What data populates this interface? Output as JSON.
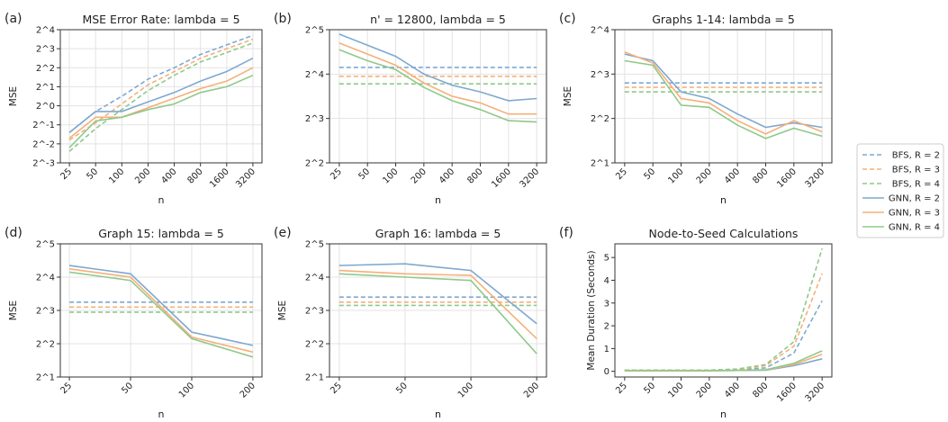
{
  "legend": {
    "placement": "right",
    "entries": [
      {
        "label": "BFS, R = 2",
        "color": "#7FA8D0",
        "dash": true
      },
      {
        "label": "BFS, R = 3",
        "color": "#F5B078",
        "dash": true
      },
      {
        "label": "BFS, R = 4",
        "color": "#8FC98A",
        "dash": true
      },
      {
        "label": "GNN, R = 2",
        "color": "#7FA8D0",
        "dash": false
      },
      {
        "label": "GNN, R = 3",
        "color": "#F5B078",
        "dash": false
      },
      {
        "label": "GNN, R = 4",
        "color": "#8FC98A",
        "dash": false
      }
    ]
  },
  "chart_data": [
    {
      "panel": "(a)",
      "type": "line",
      "title": "MSE Error Rate: lambda = 5",
      "xlabel": "n",
      "ylabel": "MSE",
      "categories": [
        "25",
        "50",
        "100",
        "200",
        "400",
        "800",
        "1600",
        "3200"
      ],
      "yscale": "log2",
      "ylim": [
        -3,
        4
      ],
      "yticks": [
        "2^-3",
        "2^-2",
        "2^-1",
        "2^0",
        "2^1",
        "2^2",
        "2^3",
        "2^4"
      ],
      "grid": true,
      "series": [
        {
          "name": "BFS, R = 2",
          "exponents": [
            -1.4,
            -0.3,
            0.5,
            1.4,
            2.0,
            2.7,
            3.2,
            3.7
          ]
        },
        {
          "name": "BFS, R = 3",
          "exponents": [
            -1.8,
            -0.9,
            0.1,
            1.1,
            1.8,
            2.5,
            3.0,
            3.5
          ]
        },
        {
          "name": "BFS, R = 4",
          "exponents": [
            -2.4,
            -1.2,
            -0.2,
            0.8,
            1.6,
            2.3,
            2.8,
            3.3
          ]
        },
        {
          "name": "GNN, R = 2",
          "exponents": [
            -1.4,
            -0.3,
            -0.3,
            0.2,
            0.7,
            1.3,
            1.8,
            2.5
          ]
        },
        {
          "name": "GNN, R = 3",
          "exponents": [
            -1.7,
            -0.6,
            -0.6,
            -0.1,
            0.4,
            0.9,
            1.3,
            2.0
          ]
        },
        {
          "name": "GNN, R = 4",
          "exponents": [
            -2.2,
            -0.8,
            -0.6,
            -0.2,
            0.1,
            0.7,
            1.0,
            1.6
          ]
        }
      ]
    },
    {
      "panel": "(b)",
      "type": "line",
      "title": "n' = 12800, lambda = 5",
      "xlabel": "n",
      "ylabel": "",
      "categories": [
        "25",
        "50",
        "100",
        "200",
        "400",
        "800",
        "1600",
        "3200"
      ],
      "yscale": "log2",
      "ylim": [
        2,
        5
      ],
      "yticks": [
        "2^2",
        "2^3",
        "2^4",
        "2^5"
      ],
      "grid": true,
      "series": [
        {
          "name": "BFS, R = 2",
          "exponents": [
            4.15,
            4.15,
            4.15,
            4.15,
            4.15,
            4.15,
            4.15,
            4.15
          ]
        },
        {
          "name": "BFS, R = 3",
          "exponents": [
            3.95,
            3.95,
            3.95,
            3.95,
            3.95,
            3.95,
            3.95,
            3.95
          ]
        },
        {
          "name": "BFS, R = 4",
          "exponents": [
            3.78,
            3.78,
            3.78,
            3.78,
            3.78,
            3.78,
            3.78,
            3.78
          ]
        },
        {
          "name": "GNN, R = 2",
          "exponents": [
            4.9,
            4.65,
            4.4,
            4.0,
            3.75,
            3.6,
            3.4,
            3.45
          ]
        },
        {
          "name": "GNN, R = 3",
          "exponents": [
            4.7,
            4.45,
            4.2,
            3.8,
            3.5,
            3.35,
            3.1,
            3.1
          ]
        },
        {
          "name": "GNN, R = 4",
          "exponents": [
            4.55,
            4.3,
            4.1,
            3.7,
            3.4,
            3.2,
            2.95,
            2.92
          ]
        }
      ]
    },
    {
      "panel": "(c)",
      "type": "line",
      "title": "Graphs 1-14: lambda = 5",
      "xlabel": "n",
      "ylabel": "MSE",
      "categories": [
        "25",
        "50",
        "100",
        "200",
        "400",
        "800",
        "1600",
        "3200"
      ],
      "yscale": "log2",
      "ylim": [
        1,
        4
      ],
      "yticks": [
        "2^1",
        "2^2",
        "2^3",
        "2^4"
      ],
      "grid": true,
      "series": [
        {
          "name": "BFS, R = 2",
          "exponents": [
            2.8,
            2.8,
            2.8,
            2.8,
            2.8,
            2.8,
            2.8,
            2.8
          ]
        },
        {
          "name": "BFS, R = 3",
          "exponents": [
            2.7,
            2.7,
            2.7,
            2.7,
            2.7,
            2.7,
            2.7,
            2.7
          ]
        },
        {
          "name": "BFS, R = 4",
          "exponents": [
            2.6,
            2.6,
            2.6,
            2.6,
            2.6,
            2.6,
            2.6,
            2.6
          ]
        },
        {
          "name": "GNN, R = 2",
          "exponents": [
            3.45,
            3.3,
            2.6,
            2.45,
            2.1,
            1.8,
            1.9,
            1.8
          ]
        },
        {
          "name": "GNN, R = 3",
          "exponents": [
            3.5,
            3.25,
            2.45,
            2.35,
            1.95,
            1.65,
            1.95,
            1.7
          ]
        },
        {
          "name": "GNN, R = 4",
          "exponents": [
            3.3,
            3.2,
            2.3,
            2.25,
            1.85,
            1.55,
            1.78,
            1.6
          ]
        }
      ]
    },
    {
      "panel": "(d)",
      "type": "line",
      "title": "Graph 15: lambda = 5",
      "xlabel": "n",
      "ylabel": "MSE",
      "categories": [
        "25",
        "50",
        "100",
        "200"
      ],
      "yscale": "log2",
      "ylim": [
        1,
        5
      ],
      "yticks": [
        "2^1",
        "2^2",
        "2^3",
        "2^4",
        "2^5"
      ],
      "grid": true,
      "series": [
        {
          "name": "BFS, R = 2",
          "exponents": [
            3.25,
            3.25,
            3.25,
            3.25
          ]
        },
        {
          "name": "BFS, R = 3",
          "exponents": [
            3.1,
            3.1,
            3.1,
            3.1
          ]
        },
        {
          "name": "BFS, R = 4",
          "exponents": [
            2.95,
            2.95,
            2.95,
            2.95
          ]
        },
        {
          "name": "GNN, R = 2",
          "exponents": [
            4.35,
            4.1,
            2.35,
            1.95
          ]
        },
        {
          "name": "GNN, R = 3",
          "exponents": [
            4.25,
            4.0,
            2.2,
            1.75
          ]
        },
        {
          "name": "GNN, R = 4",
          "exponents": [
            4.15,
            3.9,
            2.15,
            1.6
          ]
        }
      ]
    },
    {
      "panel": "(e)",
      "type": "line",
      "title": "Graph 16: lambda = 5",
      "xlabel": "n",
      "ylabel": "MSE",
      "categories": [
        "25",
        "50",
        "100",
        "200"
      ],
      "yscale": "log2",
      "ylim": [
        1,
        5
      ],
      "yticks": [
        "2^1",
        "2^2",
        "2^3",
        "2^4",
        "2^5"
      ],
      "grid": true,
      "series": [
        {
          "name": "BFS, R = 2",
          "exponents": [
            3.4,
            3.4,
            3.4,
            3.4
          ]
        },
        {
          "name": "BFS, R = 3",
          "exponents": [
            3.25,
            3.25,
            3.25,
            3.25
          ]
        },
        {
          "name": "BFS, R = 4",
          "exponents": [
            3.15,
            3.15,
            3.15,
            3.15
          ]
        },
        {
          "name": "GNN, R = 2",
          "exponents": [
            4.35,
            4.4,
            4.2,
            2.6
          ]
        },
        {
          "name": "GNN, R = 3",
          "exponents": [
            4.2,
            4.1,
            4.05,
            2.15
          ]
        },
        {
          "name": "GNN, R = 4",
          "exponents": [
            4.1,
            4.0,
            3.9,
            1.7
          ]
        }
      ]
    },
    {
      "panel": "(f)",
      "type": "line",
      "title": "Node-to-Seed Calculations",
      "xlabel": "n",
      "ylabel": "Mean Duration (Seconds)",
      "categories": [
        "25",
        "50",
        "100",
        "200",
        "400",
        "800",
        "1600",
        "3200"
      ],
      "yscale": "linear",
      "ylim": [
        -0.25,
        5.6
      ],
      "yticks": [
        "0",
        "1",
        "2",
        "3",
        "4",
        "5"
      ],
      "grid": false,
      "series": [
        {
          "name": "BFS, R = 2",
          "values": [
            0.05,
            0.05,
            0.05,
            0.05,
            0.07,
            0.15,
            0.8,
            3.1
          ]
        },
        {
          "name": "BFS, R = 3",
          "values": [
            0.05,
            0.05,
            0.05,
            0.05,
            0.08,
            0.25,
            1.1,
            4.3
          ]
        },
        {
          "name": "BFS, R = 4",
          "values": [
            0.05,
            0.05,
            0.05,
            0.05,
            0.1,
            0.3,
            1.3,
            5.4
          ]
        },
        {
          "name": "GNN, R = 2",
          "values": [
            0.03,
            0.03,
            0.03,
            0.03,
            0.04,
            0.05,
            0.25,
            0.55
          ]
        },
        {
          "name": "GNN, R = 3",
          "values": [
            0.03,
            0.03,
            0.03,
            0.03,
            0.04,
            0.06,
            0.3,
            0.75
          ]
        },
        {
          "name": "GNN, R = 4",
          "values": [
            0.03,
            0.03,
            0.03,
            0.03,
            0.04,
            0.07,
            0.35,
            0.9
          ]
        }
      ]
    }
  ]
}
